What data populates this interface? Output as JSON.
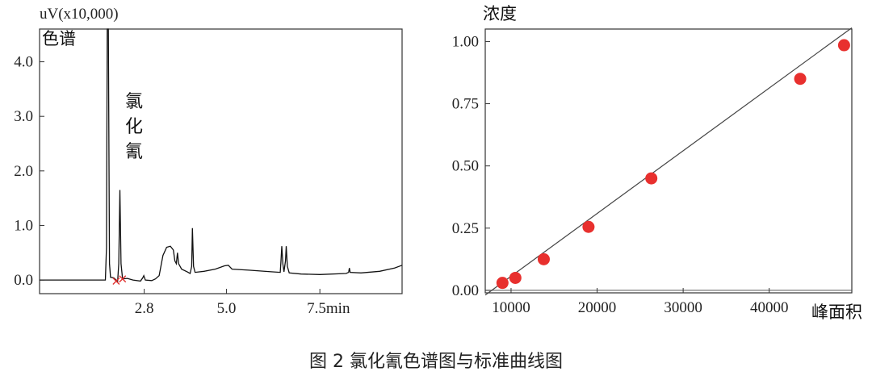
{
  "chart_data": [
    {
      "type": "line",
      "ylabel": "uV(x10,000)",
      "panel_label": "色谱",
      "annotation": [
        "氯",
        "化",
        "氰"
      ],
      "x_ticks": [
        {
          "value": 2.8,
          "label": "2.8"
        },
        {
          "value": 5.0,
          "label": "5.0"
        },
        {
          "value": 7.5,
          "label": "7.5min"
        }
      ],
      "y_ticks": [
        {
          "value": 0.0,
          "label": "0.0"
        },
        {
          "value": 1.0,
          "label": "1.0"
        },
        {
          "value": 2.0,
          "label": "2.0"
        },
        {
          "value": 3.0,
          "label": "3.0"
        },
        {
          "value": 4.0,
          "label": "4.0"
        }
      ],
      "xlim": [
        0.0,
        9.7
      ],
      "ylim": [
        -0.25,
        4.6
      ],
      "trace_color": "#111111",
      "trace": [
        [
          0.0,
          0.0
        ],
        [
          1.7,
          0.0
        ],
        [
          1.76,
          0.0
        ],
        [
          1.79,
          0.6
        ],
        [
          1.81,
          4.6
        ],
        [
          1.84,
          4.6
        ],
        [
          1.87,
          0.3
        ],
        [
          1.9,
          0.05
        ],
        [
          1.98,
          0.04
        ],
        [
          2.05,
          0.0
        ],
        [
          2.09,
          -0.02
        ],
        [
          2.12,
          0.3
        ],
        [
          2.15,
          1.65
        ],
        [
          2.18,
          0.3
        ],
        [
          2.22,
          0.02
        ],
        [
          2.35,
          0.03
        ],
        [
          2.5,
          0.0
        ],
        [
          2.7,
          -0.02
        ],
        [
          2.76,
          0.04
        ],
        [
          2.79,
          0.08
        ],
        [
          2.83,
          0.0
        ],
        [
          3.0,
          -0.01
        ],
        [
          3.1,
          0.02
        ],
        [
          3.2,
          0.08
        ],
        [
          3.3,
          0.45
        ],
        [
          3.4,
          0.6
        ],
        [
          3.5,
          0.62
        ],
        [
          3.58,
          0.55
        ],
        [
          3.62,
          0.35
        ],
        [
          3.66,
          0.3
        ],
        [
          3.69,
          0.5
        ],
        [
          3.72,
          0.3
        ],
        [
          3.8,
          0.2
        ],
        [
          3.95,
          0.15
        ],
        [
          4.03,
          0.12
        ],
        [
          4.07,
          0.25
        ],
        [
          4.09,
          0.95
        ],
        [
          4.12,
          0.25
        ],
        [
          4.16,
          0.14
        ],
        [
          4.4,
          0.16
        ],
        [
          4.7,
          0.2
        ],
        [
          4.95,
          0.26
        ],
        [
          5.05,
          0.27
        ],
        [
          5.15,
          0.2
        ],
        [
          5.6,
          0.18
        ],
        [
          6.2,
          0.15
        ],
        [
          6.44,
          0.14
        ],
        [
          6.46,
          0.35
        ],
        [
          6.48,
          0.62
        ],
        [
          6.51,
          0.3
        ],
        [
          6.54,
          0.15
        ],
        [
          6.58,
          0.35
        ],
        [
          6.6,
          0.62
        ],
        [
          6.63,
          0.25
        ],
        [
          6.68,
          0.13
        ],
        [
          7.0,
          0.11
        ],
        [
          7.5,
          0.1
        ],
        [
          8.2,
          0.12
        ],
        [
          8.27,
          0.14
        ],
        [
          8.29,
          0.22
        ],
        [
          8.31,
          0.14
        ],
        [
          8.6,
          0.13
        ],
        [
          9.1,
          0.16
        ],
        [
          9.5,
          0.22
        ],
        [
          9.7,
          0.27
        ]
      ],
      "markers": [
        {
          "x": 2.05,
          "y": -0.02,
          "color": "#e0302e"
        },
        {
          "x": 2.22,
          "y": 0.02,
          "color": "#e0302e"
        }
      ]
    },
    {
      "type": "scatter",
      "ylabel": "浓度",
      "xlabel": "峰面积",
      "x_ticks": [
        10000,
        20000,
        30000,
        40000
      ],
      "y_ticks": [
        {
          "value": 0.0,
          "label": "0.00"
        },
        {
          "value": 0.25,
          "label": "0.25"
        },
        {
          "value": 0.5,
          "label": "0.50"
        },
        {
          "value": 0.75,
          "label": "0.75"
        },
        {
          "value": 1.0,
          "label": "1.00"
        }
      ],
      "xlim": [
        7000,
        49600
      ],
      "ylim": [
        -0.01,
        1.05
      ],
      "point_color": "#e8302e",
      "line_color": "#444444",
      "points": [
        {
          "x": 9000,
          "y": 0.03
        },
        {
          "x": 10500,
          "y": 0.05
        },
        {
          "x": 13800,
          "y": 0.125
        },
        {
          "x": 19000,
          "y": 0.255
        },
        {
          "x": 26300,
          "y": 0.45
        },
        {
          "x": 43600,
          "y": 0.85
        },
        {
          "x": 48700,
          "y": 0.985
        }
      ],
      "fit_line": {
        "x": [
          7000,
          49600
        ],
        "y": [
          -0.019,
          1.055
        ]
      }
    }
  ],
  "caption": "图 2  氯化氰色谱图与标准曲线图"
}
